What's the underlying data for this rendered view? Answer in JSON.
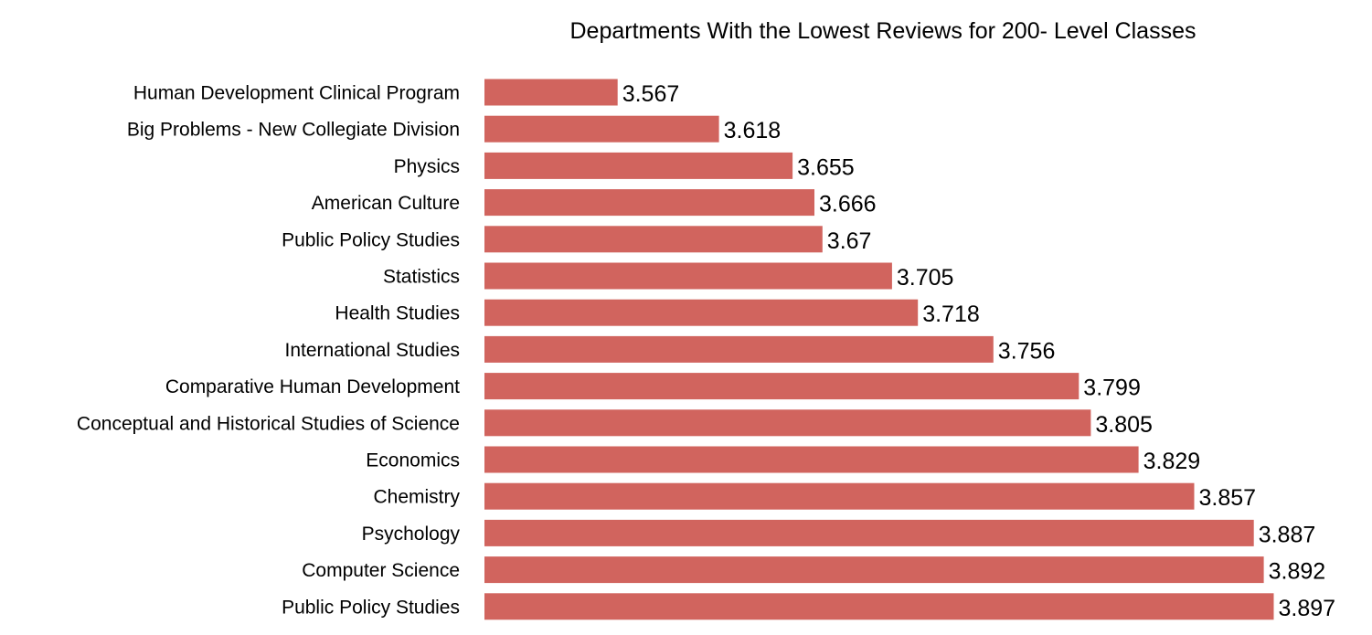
{
  "chart_data": {
    "type": "bar",
    "orientation": "horizontal",
    "title": "Departments With the Lowest Reviews for 200- Level Classes",
    "xlabel": "",
    "ylabel": "",
    "categories": [
      "Human Development Clinical Program",
      "Big Problems - New Collegiate Division",
      "Physics",
      "American Culture",
      "Public Policy Studies",
      "Statistics",
      "Health Studies",
      "International Studies",
      "Comparative Human Development",
      "Conceptual and Historical Studies of Science",
      "Economics",
      "Chemistry",
      "Psychology",
      "Computer Science",
      "Public Policy Studies"
    ],
    "values": [
      3.567,
      3.618,
      3.655,
      3.666,
      3.67,
      3.705,
      3.718,
      3.756,
      3.799,
      3.805,
      3.829,
      3.857,
      3.887,
      3.892,
      3.897
    ],
    "value_labels": [
      "3.567",
      "3.618",
      "3.655",
      "3.666",
      "3.67",
      "3.705",
      "3.718",
      "3.756",
      "3.799",
      "3.805",
      "3.829",
      "3.857",
      "3.887",
      "3.892",
      "3.897"
    ],
    "xlim": [
      3.5,
      3.9
    ],
    "bar_color": "#d1645e",
    "grid": false,
    "legend": "none"
  }
}
